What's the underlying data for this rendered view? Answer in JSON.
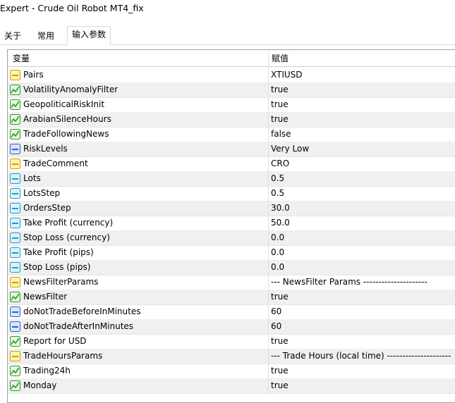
{
  "window": {
    "title": "Expert - Crude Oil Robot MT4_fix"
  },
  "tabs": [
    "关于",
    "常用",
    "输入参数"
  ],
  "active_tab": 2,
  "table": {
    "headers": [
      "变量",
      "赋值"
    ],
    "rows": [
      {
        "icon": "string",
        "name": "Pairs",
        "value": "XTIUSD"
      },
      {
        "icon": "bool",
        "name": "VolatilityAnomalyFilter",
        "value": "true"
      },
      {
        "icon": "bool",
        "name": "GeopoliticalRiskInit",
        "value": "true"
      },
      {
        "icon": "bool",
        "name": "ArabianSilenceHours",
        "value": "true"
      },
      {
        "icon": "bool",
        "name": "TradeFollowingNews",
        "value": "false"
      },
      {
        "icon": "int",
        "name": "RiskLevels",
        "value": "Very Low"
      },
      {
        "icon": "string",
        "name": "TradeComment",
        "value": "CRO"
      },
      {
        "icon": "double",
        "name": "Lots",
        "value": "0.5"
      },
      {
        "icon": "double",
        "name": "LotsStep",
        "value": "0.5"
      },
      {
        "icon": "double",
        "name": "OrdersStep",
        "value": "30.0"
      },
      {
        "icon": "double",
        "name": "Take Profit (currency)",
        "value": "50.0"
      },
      {
        "icon": "double",
        "name": "Stop Loss (currency)",
        "value": "0.0"
      },
      {
        "icon": "double",
        "name": "Take Profit (pips)",
        "value": "0.0"
      },
      {
        "icon": "double",
        "name": "Stop Loss (pips)",
        "value": "0.0"
      },
      {
        "icon": "string",
        "name": "NewsFilterParams",
        "value": "--- NewsFilter Params ---------------------"
      },
      {
        "icon": "bool",
        "name": "NewsFilter",
        "value": "true"
      },
      {
        "icon": "int",
        "name": "doNotTradeBeforeInMinutes",
        "value": "60"
      },
      {
        "icon": "int",
        "name": "doNotTradeAfterInMinutes",
        "value": "60"
      },
      {
        "icon": "bool",
        "name": "Report for USD",
        "value": "true"
      },
      {
        "icon": "string",
        "name": "TradeHoursParams",
        "value": "--- Trade Hours  (local time) ---------------------"
      },
      {
        "icon": "bool",
        "name": "Trading24h",
        "value": "true"
      },
      {
        "icon": "bool",
        "name": "Monday",
        "value": "true"
      }
    ]
  }
}
